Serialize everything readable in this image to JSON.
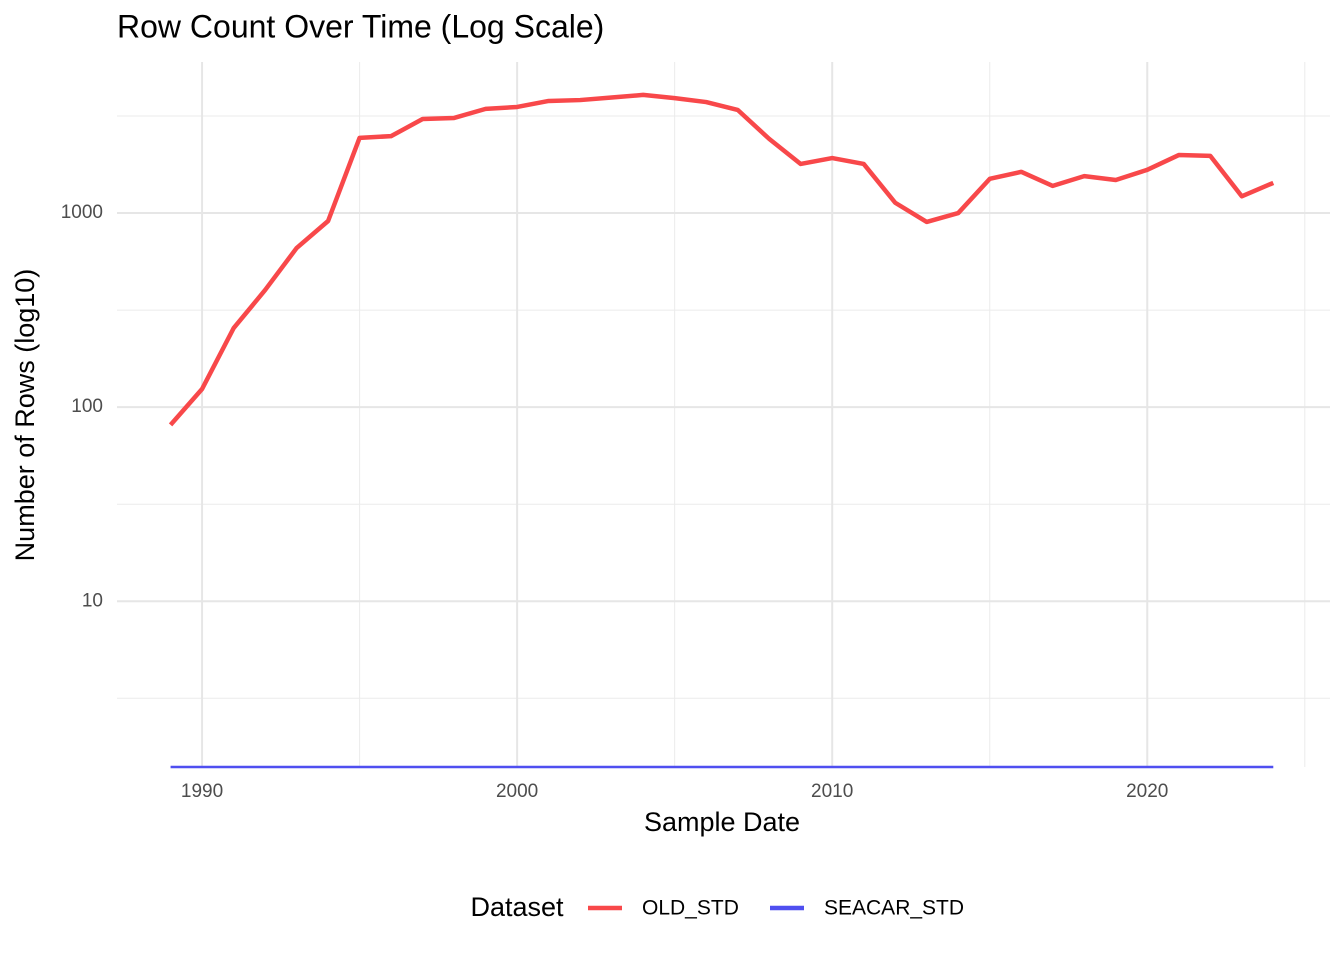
{
  "chart_data": {
    "type": "line",
    "title": "Row Count Over Time (Log Scale)",
    "x_label": "Sample Date",
    "y_label": "Number of Rows (log10)",
    "legend_title": "Dataset",
    "legend_position": "bottom",
    "log_y": true,
    "grid": true,
    "x": [
      1989,
      1990,
      1991,
      1992,
      1993,
      1994,
      1995,
      1996,
      1997,
      1998,
      1999,
      2000,
      2001,
      2002,
      2003,
      2004,
      2005,
      2006,
      2007,
      2008,
      2009,
      2010,
      2011,
      2012,
      2013,
      2014,
      2015,
      2016,
      2017,
      2018,
      2019,
      2020,
      2021,
      2022,
      2023,
      2024
    ],
    "series": [
      {
        "name": "OLD_STD",
        "color": "#f8484a",
        "values": [
          81,
          124,
          255,
          401,
          660,
          910,
          2440,
          2490,
          3050,
          3090,
          3440,
          3520,
          3780,
          3820,
          3940,
          4060,
          3910,
          3730,
          3400,
          2410,
          1790,
          1920,
          1790,
          1130,
          900,
          1000,
          1500,
          1630,
          1380,
          1550,
          1480,
          1670,
          1990,
          1970,
          1220,
          1430
        ]
      },
      {
        "name": "SEACAR_STD",
        "color": "#4f4ff0",
        "values": [
          1.4,
          1.4,
          1.4,
          1.4,
          1.4,
          1.4,
          1.4,
          1.4,
          1.4,
          1.4,
          1.4,
          1.4,
          1.4,
          1.4,
          1.4,
          1.4,
          1.4,
          1.4,
          1.4,
          1.4,
          1.4,
          1.4,
          1.4,
          1.4,
          1.4,
          1.4,
          1.4,
          1.4,
          1.4,
          1.4,
          1.4,
          1.4,
          1.4,
          1.4,
          1.4,
          1.4
        ]
      }
    ],
    "xlim": [
      1987.3,
      2025.8
    ],
    "xticks": [
      1990,
      2000,
      2010,
      2020
    ],
    "ylim": [
      1.4,
      6000
    ],
    "yticks": [
      10,
      100,
      1000
    ]
  }
}
